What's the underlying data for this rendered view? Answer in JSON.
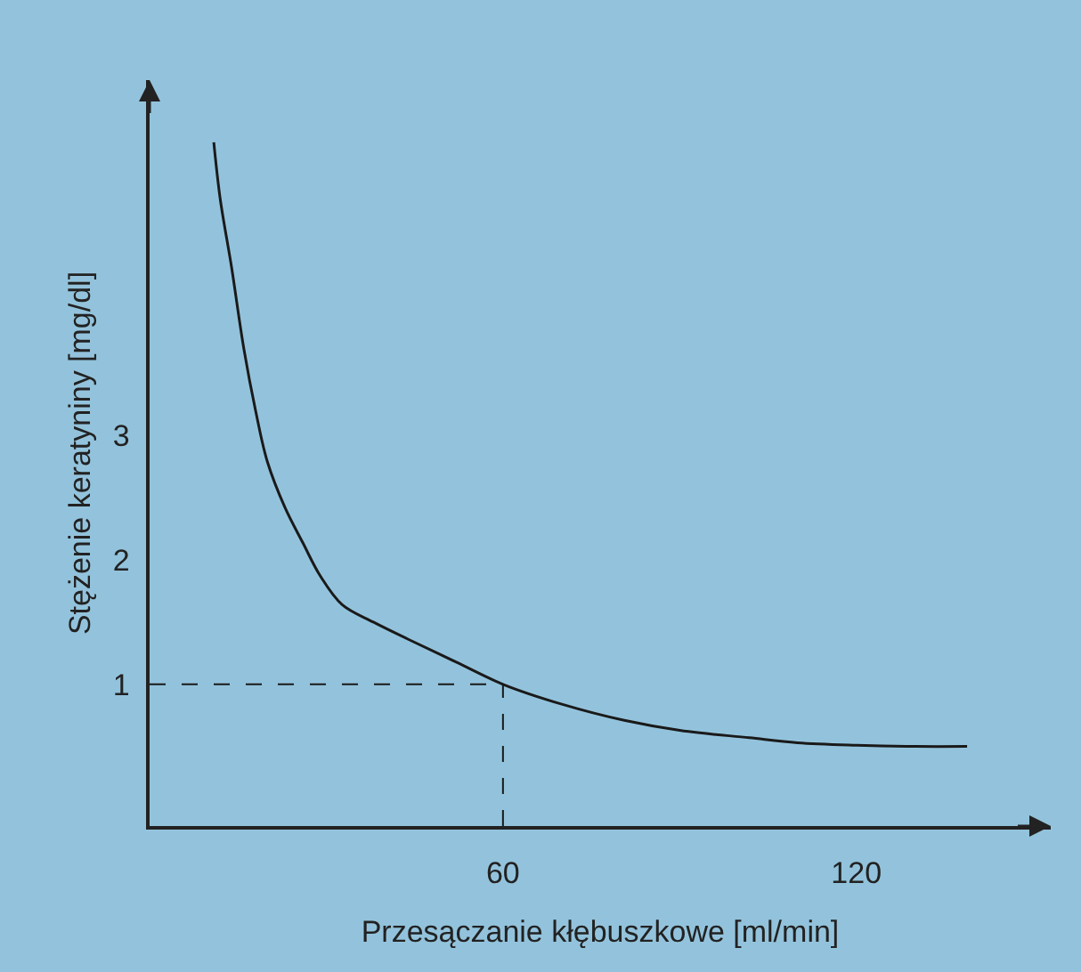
{
  "chart_data": {
    "type": "line",
    "xlabel": "Przesączanie kłębuszkowe [ml/min]",
    "ylabel": "Stężenie keratyniny [mg/dl]",
    "x": [
      10.9,
      12,
      13.9,
      16,
      18,
      20,
      23,
      26,
      29,
      32.7,
      38,
      44,
      52,
      60,
      70,
      80.6,
      90,
      101.8,
      110,
      120,
      130,
      138.8
    ],
    "series": [
      {
        "color": "#1a1a1a",
        "values": [
          5.36,
          4.9,
          4.36,
          3.7,
          3.2,
          2.79,
          2.42,
          2.14,
          1.87,
          1.64,
          1.5,
          1.36,
          1.18,
          1.0,
          0.84,
          0.71,
          0.63,
          0.57,
          0.53,
          0.51,
          0.5,
          0.5
        ]
      }
    ],
    "xlim": [
      0,
      153
    ],
    "ylim": [
      -0.14,
      5.86
    ],
    "xticks": [
      60,
      120
    ],
    "yticks": [
      1,
      2,
      3
    ],
    "ref_lines": [
      {
        "axis": "y",
        "value": 1,
        "color": "#1a1a1a",
        "line_style": "dashed"
      },
      {
        "axis": "x",
        "value": 60,
        "color": "#1a1a1a",
        "line_style": "dashed"
      }
    ],
    "grid": false,
    "marker": "none",
    "line_style": "solid"
  }
}
